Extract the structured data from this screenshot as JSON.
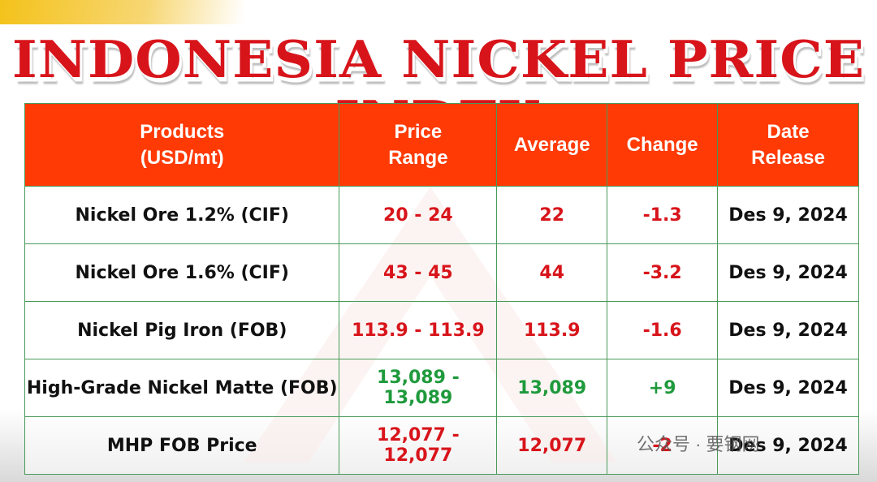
{
  "title": "INDONESIA NICKEL PRICE INDEX",
  "table": {
    "header": [
      [
        "Products",
        "(USD/mt)"
      ],
      [
        "Price",
        "Range"
      ],
      [
        "Average"
      ],
      [
        "Change"
      ],
      [
        "Date",
        "Release"
      ]
    ],
    "rows": [
      {
        "cells": [
          "Nickel Ore 1.2% (CIF)",
          "20 - 24",
          "22",
          "-1.3",
          "Des 9, 2024"
        ],
        "color": "#d8141b"
      },
      {
        "cells": [
          "Nickel Ore 1.6% (CIF)",
          "43 - 45",
          "44",
          "-3.2",
          "Des 9, 2024"
        ],
        "color": "#d8141b"
      },
      {
        "cells": [
          "Nickel Pig Iron (FOB)",
          "113.9 - 113.9",
          "113.9",
          "-1.6",
          "Des 9, 2024"
        ],
        "color": "#d8141b"
      },
      {
        "cells": [
          "High-Grade Nickel Matte (FOB)",
          "13,089 - 13,089",
          "13,089",
          "+9",
          "Des 9, 2024"
        ],
        "color": "#1f9a3c"
      },
      {
        "cells": [
          "MHP FOB Price",
          "12,077 - 12,077",
          "12,077",
          "-2",
          "Des 9, 2024"
        ],
        "color": "#d8141b"
      }
    ]
  },
  "watermark": "公众号 · 要钢网"
}
